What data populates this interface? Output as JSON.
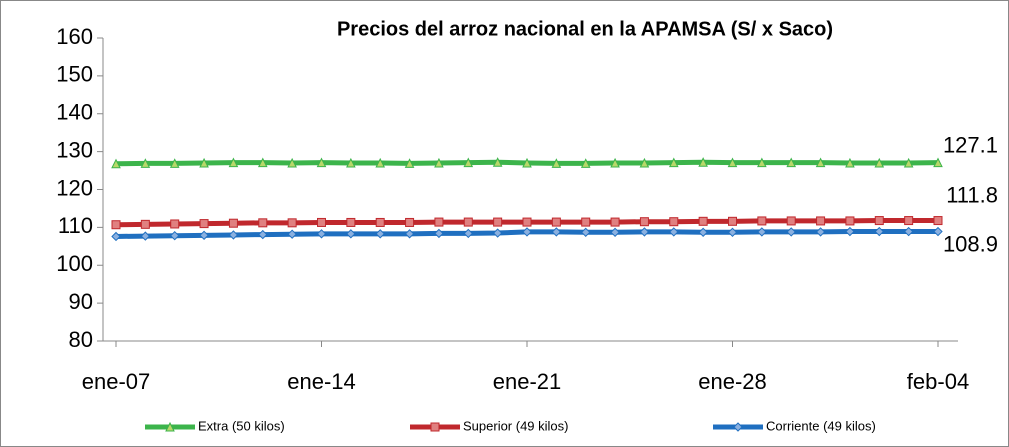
{
  "chart_data": {
    "type": "line",
    "title": "Precios del arroz nacional en la APAMSA (S/ x Saco)",
    "categories": [
      "ene-07",
      null,
      null,
      null,
      null,
      null,
      null,
      "ene-14",
      null,
      null,
      null,
      null,
      null,
      null,
      "ene-21",
      null,
      null,
      null,
      null,
      null,
      null,
      "ene-28",
      null,
      null,
      null,
      null,
      null,
      null,
      "feb-04"
    ],
    "series": [
      {
        "name": "Extra (50 kilos)",
        "color": "#3cb44b",
        "marker": "triangle",
        "values": [
          126.8,
          126.9,
          126.9,
          127.0,
          127.1,
          127.1,
          127.0,
          127.1,
          127.0,
          127.0,
          126.9,
          127.0,
          127.1,
          127.2,
          127.0,
          126.9,
          126.9,
          127.0,
          127.0,
          127.1,
          127.2,
          127.1,
          127.1,
          127.1,
          127.1,
          127.0,
          127.0,
          127.0,
          127.1
        ]
      },
      {
        "name": "Superior (49 kilos)",
        "color": "#c0282d",
        "marker": "square",
        "values": [
          110.7,
          110.8,
          110.9,
          111.0,
          111.1,
          111.2,
          111.2,
          111.3,
          111.3,
          111.3,
          111.3,
          111.4,
          111.4,
          111.4,
          111.4,
          111.4,
          111.4,
          111.4,
          111.5,
          111.5,
          111.6,
          111.6,
          111.7,
          111.7,
          111.7,
          111.7,
          111.8,
          111.8,
          111.8
        ]
      },
      {
        "name": "Corriente (49 kilos)",
        "color": "#1f6fc0",
        "marker": "diamond",
        "values": [
          107.6,
          107.7,
          107.8,
          107.9,
          108.0,
          108.1,
          108.2,
          108.3,
          108.3,
          108.3,
          108.3,
          108.4,
          108.4,
          108.5,
          108.8,
          108.8,
          108.7,
          108.7,
          108.8,
          108.8,
          108.7,
          108.7,
          108.8,
          108.8,
          108.8,
          108.9,
          108.9,
          108.9,
          108.9
        ]
      }
    ],
    "ylim": [
      80,
      160
    ],
    "yticks": [
      80,
      90,
      100,
      110,
      120,
      130,
      140,
      150,
      160
    ],
    "legend": "bottom"
  }
}
